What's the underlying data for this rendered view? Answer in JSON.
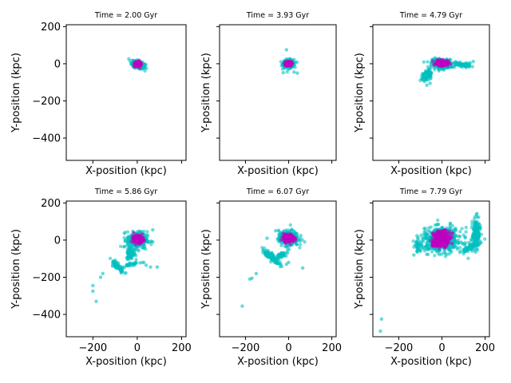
{
  "chart_data": [
    {
      "type": "scatter",
      "title": "Time = 2.00 Gyr",
      "xlabel": "X-position (kpc)",
      "ylabel": "Y-position (kpc)",
      "xlim": [
        -320,
        220
      ],
      "ylim": [
        -520,
        210
      ],
      "xticks": [],
      "yticks": [
        -400,
        -200,
        0,
        200
      ],
      "ytick_labels": [
        "−400",
        "−200",
        "0",
        "200"
      ],
      "grid": false,
      "series": [
        {
          "color": "#00bfbf",
          "clouds": [
            {
              "cx": 5,
              "cy": -5,
              "rx": 30,
              "ry": 18,
              "rot": -25,
              "n": 260
            }
          ],
          "points": []
        },
        {
          "color": "#bf00bf",
          "clouds": [
            {
              "cx": 3,
              "cy": -2,
              "rx": 16,
              "ry": 12,
              "rot": -25,
              "n": 140
            }
          ],
          "points": []
        }
      ]
    },
    {
      "type": "scatter",
      "title": "Time = 3.93 Gyr",
      "xlabel": "X-position (kpc)",
      "ylabel": "Y-position (kpc)",
      "xlim": [
        -320,
        220
      ],
      "ylim": [
        -520,
        210
      ],
      "xticks": [],
      "yticks": [
        -400,
        -200,
        0,
        200
      ],
      "ytick_labels": [],
      "grid": false,
      "series": [
        {
          "color": "#00bfbf",
          "clouds": [
            {
              "cx": 0,
              "cy": 0,
              "rx": 25,
              "ry": 22,
              "rot": 0,
              "n": 260
            }
          ],
          "points": [
            [
              -10,
              75
            ],
            [
              40,
              -50
            ],
            [
              25,
              -45
            ],
            [
              -25,
              -48
            ]
          ]
        },
        {
          "color": "#bf00bf",
          "clouds": [
            {
              "cx": 0,
              "cy": 0,
              "rx": 14,
              "ry": 12,
              "rot": 0,
              "n": 140
            }
          ],
          "points": []
        }
      ]
    },
    {
      "type": "scatter",
      "title": "Time = 4.79 Gyr",
      "xlabel": "X-position (kpc)",
      "ylabel": "Y-position (kpc)",
      "xlim": [
        -320,
        220
      ],
      "ylim": [
        -520,
        210
      ],
      "xticks": [],
      "yticks": [
        -400,
        -200,
        0,
        200
      ],
      "ytick_labels": [],
      "grid": false,
      "series": [
        {
          "color": "#00bfbf",
          "clouds": [
            {
              "cx": 0,
              "cy": 0,
              "rx": 45,
              "ry": 25,
              "rot": -5,
              "n": 300
            },
            {
              "cx": -70,
              "cy": -60,
              "rx": 18,
              "ry": 28,
              "rot": -30,
              "n": 110
            },
            {
              "cx": 90,
              "cy": -5,
              "rx": 45,
              "ry": 9,
              "rot": -10,
              "n": 90
            }
          ],
          "points": [
            [
              -70,
              -115
            ],
            [
              -55,
              -105
            ],
            [
              145,
              12
            ],
            [
              130,
              5
            ],
            [
              -80,
              -95
            ]
          ]
        },
        {
          "color": "#bf00bf",
          "clouds": [
            {
              "cx": 0,
              "cy": 3,
              "rx": 28,
              "ry": 15,
              "rot": 0,
              "n": 150
            }
          ],
          "points": []
        }
      ]
    },
    {
      "type": "scatter",
      "title": "Time = 5.86 Gyr",
      "xlabel": "X-position (kpc)",
      "ylabel": "Y-position (kpc)",
      "xlim": [
        -320,
        220
      ],
      "ylim": [
        -520,
        210
      ],
      "xticks": [
        -200,
        0,
        200
      ],
      "xtick_labels": [
        "−200",
        "0",
        "200"
      ],
      "yticks": [
        -400,
        -200,
        0,
        200
      ],
      "ytick_labels": [
        "−400",
        "−200",
        "0",
        "200"
      ],
      "grid": false,
      "series": [
        {
          "color": "#00bfbf",
          "clouds": [
            {
              "cx": 0,
              "cy": 0,
              "rx": 45,
              "ry": 45,
              "rot": 0,
              "n": 320
            },
            {
              "cx": -30,
              "cy": -70,
              "rx": 18,
              "ry": 32,
              "rot": 0,
              "n": 90
            },
            {
              "cx": -90,
              "cy": -140,
              "rx": 45,
              "ry": 12,
              "rot": -50,
              "n": 70
            },
            {
              "cx": -30,
              "cy": -130,
              "rx": 40,
              "ry": 10,
              "rot": 10,
              "n": 30
            }
          ],
          "points": [
            [
              -185,
              -330
            ],
            [
              -200,
              -245
            ],
            [
              -200,
              -275
            ],
            [
              -165,
              -200
            ],
            [
              -155,
              -180
            ],
            [
              90,
              -145
            ],
            [
              60,
              -145
            ],
            [
              40,
              -135
            ],
            [
              70,
              55
            ],
            [
              70,
              -10
            ],
            [
              30,
              -120
            ]
          ]
        },
        {
          "color": "#bf00bf",
          "clouds": [
            {
              "cx": 5,
              "cy": 5,
              "rx": 22,
              "ry": 20,
              "rot": 0,
              "n": 170
            }
          ],
          "points": []
        }
      ]
    },
    {
      "type": "scatter",
      "title": "Time = 6.07 Gyr",
      "xlabel": "X-position (kpc)",
      "ylabel": "Y-position (kpc)",
      "xlim": [
        -320,
        220
      ],
      "ylim": [
        -520,
        210
      ],
      "xticks": [
        -200,
        0,
        200
      ],
      "xtick_labels": [
        "−200",
        "0",
        "200"
      ],
      "yticks": [
        -400,
        -200,
        0,
        200
      ],
      "ytick_labels": [],
      "grid": false,
      "series": [
        {
          "color": "#00bfbf",
          "clouds": [
            {
              "cx": 0,
              "cy": 10,
              "rx": 45,
              "ry": 40,
              "rot": 0,
              "n": 320
            },
            {
              "cx": -80,
              "cy": -90,
              "rx": 55,
              "ry": 14,
              "rot": -45,
              "n": 110
            },
            {
              "cx": -35,
              "cy": -80,
              "rx": 25,
              "ry": 14,
              "rot": 20,
              "n": 40
            }
          ],
          "points": [
            [
              -215,
              -355
            ],
            [
              -180,
              -210
            ],
            [
              -170,
              -205
            ],
            [
              -150,
              -180
            ],
            [
              65,
              -150
            ],
            [
              -10,
              -130
            ],
            [
              0,
              -120
            ],
            [
              -60,
              50
            ],
            [
              -45,
              30
            ],
            [
              -100,
              10
            ]
          ]
        },
        {
          "color": "#bf00bf",
          "clouds": [
            {
              "cx": 0,
              "cy": 10,
              "rx": 25,
              "ry": 22,
              "rot": 0,
              "n": 170
            }
          ],
          "points": []
        }
      ]
    },
    {
      "type": "scatter",
      "title": "Time = 7.79 Gyr",
      "xlabel": "X-position (kpc)",
      "ylabel": "Y-position (kpc)",
      "xlim": [
        -320,
        220
      ],
      "ylim": [
        -520,
        210
      ],
      "xticks": [
        -200,
        0,
        200
      ],
      "xtick_labels": [
        "−200",
        "0",
        "200"
      ],
      "yticks": [
        -400,
        -200,
        0,
        200
      ],
      "ytick_labels": [],
      "grid": false,
      "series": [
        {
          "color": "#00bfbf",
          "clouds": [
            {
              "cx": 0,
              "cy": 0,
              "rx": 95,
              "ry": 65,
              "rot": 0,
              "n": 520
            },
            {
              "cx": 160,
              "cy": 40,
              "rx": 18,
              "ry": 75,
              "rot": 0,
              "n": 160
            },
            {
              "cx": 130,
              "cy": -40,
              "rx": 45,
              "ry": 12,
              "rot": 35,
              "n": 90
            },
            {
              "cx": -110,
              "cy": -30,
              "rx": 12,
              "ry": 30,
              "rot": 0,
              "n": 30
            }
          ],
          "points": [
            [
              -280,
              -425
            ],
            [
              -285,
              -490
            ],
            [
              -130,
              -80
            ],
            [
              -100,
              -60
            ]
          ]
        },
        {
          "color": "#bf00bf",
          "clouds": [
            {
              "cx": 0,
              "cy": 10,
              "rx": 40,
              "ry": 40,
              "rot": 0,
              "n": 240
            },
            {
              "cx": -30,
              "cy": -20,
              "rx": 18,
              "ry": 15,
              "rot": 0,
              "n": 50
            }
          ],
          "points": []
        }
      ]
    }
  ]
}
